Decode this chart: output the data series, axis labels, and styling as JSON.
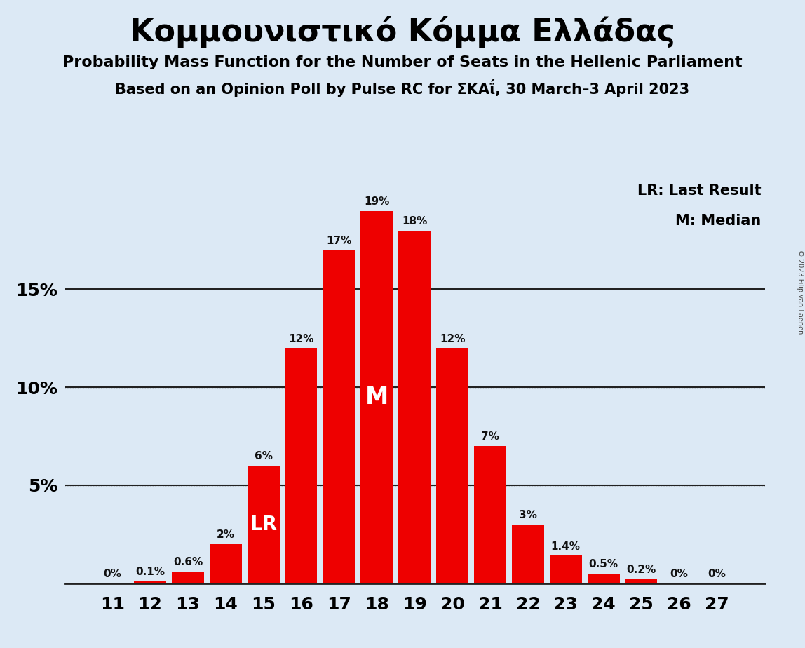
{
  "title": "Κομμουνιστικό Κόμμα Ελλάδας",
  "subtitle1": "Probability Mass Function for the Number of Seats in the Hellenic Parliament",
  "subtitle2": "Based on an Opinion Poll by Pulse RC for ΣΚΑΐ, 30 March–3 April 2023",
  "copyright": "© 2023 Filip van Laenen",
  "categories": [
    11,
    12,
    13,
    14,
    15,
    16,
    17,
    18,
    19,
    20,
    21,
    22,
    23,
    24,
    25,
    26,
    27
  ],
  "values": [
    0.0,
    0.1,
    0.6,
    2.0,
    6.0,
    12.0,
    17.0,
    19.0,
    18.0,
    12.0,
    7.0,
    3.0,
    1.4,
    0.5,
    0.2,
    0.0,
    0.0
  ],
  "bar_color": "#ee0000",
  "background_color": "#dce9f5",
  "label_color_dark": "#111111",
  "label_color_white": "#ffffff",
  "lr_bar": 15,
  "median_bar": 18,
  "ylim": [
    0,
    20.5
  ],
  "yticks": [
    5,
    10,
    15
  ],
  "ytick_labels": [
    "5%",
    "10%",
    "15%"
  ],
  "legend_lr": "LR: Last Result",
  "legend_m": "M: Median",
  "annotations": {
    "11": "0%",
    "12": "0.1%",
    "13": "0.6%",
    "14": "2%",
    "15": "6%",
    "16": "12%",
    "17": "17%",
    "18": "19%",
    "19": "18%",
    "20": "12%",
    "21": "7%",
    "22": "3%",
    "23": "1.4%",
    "24": "0.5%",
    "25": "0.2%",
    "26": "0%",
    "27": "0%"
  }
}
